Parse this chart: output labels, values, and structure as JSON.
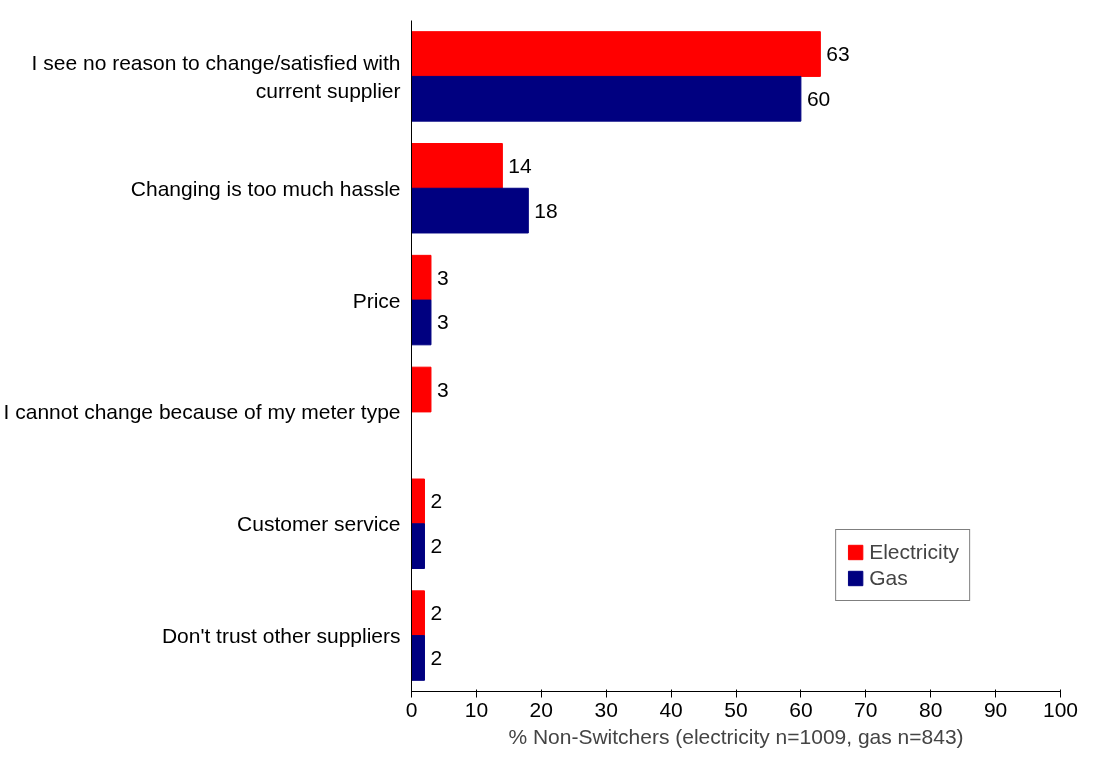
{
  "chart_data": {
    "type": "bar",
    "orientation": "horizontal",
    "categories": [
      "I see no reason to change/satisfied with current supplier",
      "Changing is too much hassle",
      "Price",
      "I cannot change because of my meter type",
      "Customer service",
      "Don't trust other suppliers"
    ],
    "series": [
      {
        "name": "Electricity",
        "color": "#ff0000",
        "values": [
          63,
          14,
          3,
          3,
          2,
          2
        ]
      },
      {
        "name": "Gas",
        "color": "#000080",
        "values": [
          60,
          18,
          3,
          null,
          2,
          2
        ]
      }
    ],
    "xlim": [
      0,
      100
    ],
    "xticks": [
      0,
      10,
      20,
      30,
      40,
      50,
      60,
      70,
      80,
      90,
      100
    ],
    "xlabel": "% Non-Switchers (electricity n=1009, gas n=843)",
    "data_labels": true,
    "legend": "bottom right",
    "grid": false
  }
}
